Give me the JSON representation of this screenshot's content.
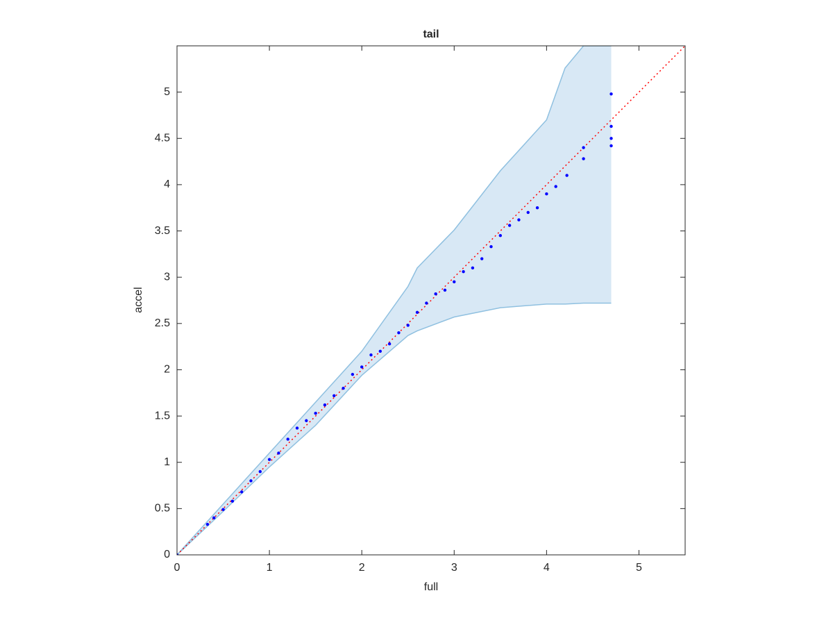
{
  "chart_data": {
    "type": "scatter",
    "title": "tail",
    "x_label": "full",
    "y_label": "accel",
    "xlim": [
      0,
      5.5
    ],
    "ylim": [
      0,
      5.5
    ],
    "xticks": [
      0,
      1,
      2,
      3,
      4,
      5
    ],
    "yticks": [
      0,
      0.5,
      1,
      1.5,
      2,
      2.5,
      3,
      3.5,
      4,
      4.5,
      5
    ],
    "points": {
      "color": "#0000ff",
      "x": [
        0,
        0.33,
        0.4,
        0.5,
        0.6,
        0.7,
        0.8,
        0.9,
        1.0,
        1.1,
        1.2,
        1.3,
        1.4,
        1.5,
        1.6,
        1.7,
        1.8,
        1.9,
        2.0,
        2.1,
        2.2,
        2.3,
        2.4,
        2.5,
        2.6,
        2.7,
        2.8,
        2.9,
        3.0,
        3.1,
        3.2,
        3.3,
        3.4,
        3.5,
        3.6,
        3.7,
        3.8,
        3.9,
        4.0,
        4.1,
        4.22,
        4.4,
        4.4,
        4.7,
        4.7,
        4.7,
        4.7
      ],
      "y": [
        0,
        0.33,
        0.4,
        0.49,
        0.58,
        0.68,
        0.8,
        0.9,
        1.03,
        1.1,
        1.25,
        1.37,
        1.45,
        1.53,
        1.62,
        1.72,
        1.8,
        1.95,
        2.03,
        2.16,
        2.2,
        2.28,
        2.4,
        2.48,
        2.62,
        2.72,
        2.82,
        2.86,
        2.95,
        3.06,
        3.1,
        3.2,
        3.33,
        3.45,
        3.56,
        3.62,
        3.7,
        3.75,
        3.9,
        3.98,
        4.1,
        4.28,
        4.4,
        4.42,
        4.5,
        4.63,
        4.98
      ]
    },
    "band": {
      "color": "#d8e8f5",
      "edge_color": "#8fc0e0",
      "x": [
        0,
        0.5,
        1,
        1.5,
        2,
        2.5,
        2.6,
        3,
        3.5,
        4,
        4.2,
        4.4,
        4.7
      ],
      "upper": [
        0,
        0.55,
        1.1,
        1.65,
        2.2,
        2.9,
        3.1,
        3.51,
        4.15,
        4.7,
        5.26,
        5.5,
        5.5
      ],
      "lower": [
        0,
        0.47,
        0.95,
        1.4,
        1.94,
        2.37,
        2.42,
        2.57,
        2.67,
        2.71,
        2.71,
        2.72,
        2.72
      ]
    },
    "reference": {
      "color": "#ff0000",
      "x": [
        0,
        5.5
      ],
      "y": [
        0,
        5.5
      ]
    }
  }
}
